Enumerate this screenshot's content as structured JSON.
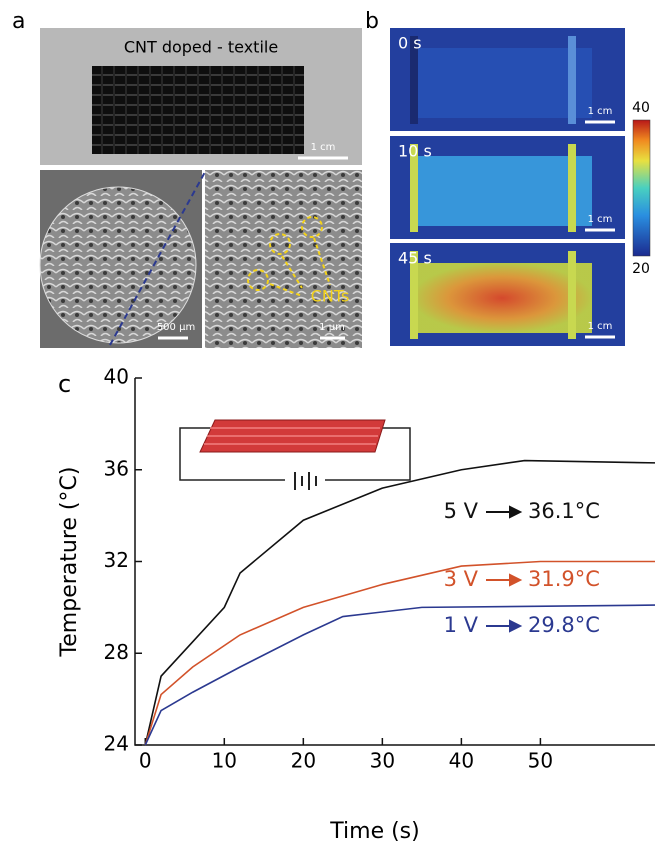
{
  "panel_a": {
    "letter": "a",
    "photo_label": "CNT doped - textile",
    "photo_scale": "1 cm",
    "sem_left_scale": "500 μm",
    "sem_right_scale": "1 μm",
    "sem_annotation": "CNTs"
  },
  "panel_b": {
    "letter": "b",
    "frames": [
      {
        "time": "0 s",
        "scale": "1 cm"
      },
      {
        "time": "10 s",
        "scale": "1 cm"
      },
      {
        "time": "45 s",
        "scale": "1 cm"
      }
    ],
    "colorbar_max": "40",
    "colorbar_min": "20"
  },
  "chart_data": {
    "type": "line",
    "panel_letter": "c",
    "x_label": "Time (s)",
    "y_label": "Temperature (°C)",
    "xlim": [
      -1.3,
      64.5
    ],
    "xticks": [
      0,
      10,
      20,
      30,
      40,
      50
    ],
    "ylim": [
      24,
      40
    ],
    "yticks": [
      24,
      28,
      32,
      36,
      40
    ],
    "series": [
      {
        "name": "5 V",
        "color": "#111111",
        "label": "36.1°C",
        "x": [
          0,
          2,
          6,
          10,
          12,
          20,
          30,
          40,
          48,
          64.5
        ],
        "values": [
          24,
          27,
          28.5,
          30,
          31.5,
          33.8,
          35.2,
          36,
          36.4,
          36.3
        ]
      },
      {
        "name": "3 V",
        "color": "#d2522a",
        "label": "31.9°C",
        "x": [
          0,
          2,
          6,
          12,
          20,
          30,
          40,
          50,
          64.5
        ],
        "values": [
          24,
          26.2,
          27.4,
          28.8,
          30,
          31,
          31.8,
          32,
          32
        ]
      },
      {
        "name": "1 V",
        "color": "#2b3990",
        "label": "29.8°C",
        "x": [
          0,
          2,
          6,
          12,
          20,
          25,
          35,
          64.5
        ],
        "values": [
          24,
          25.5,
          26.3,
          27.4,
          28.8,
          29.6,
          30,
          30.1
        ]
      }
    ]
  }
}
